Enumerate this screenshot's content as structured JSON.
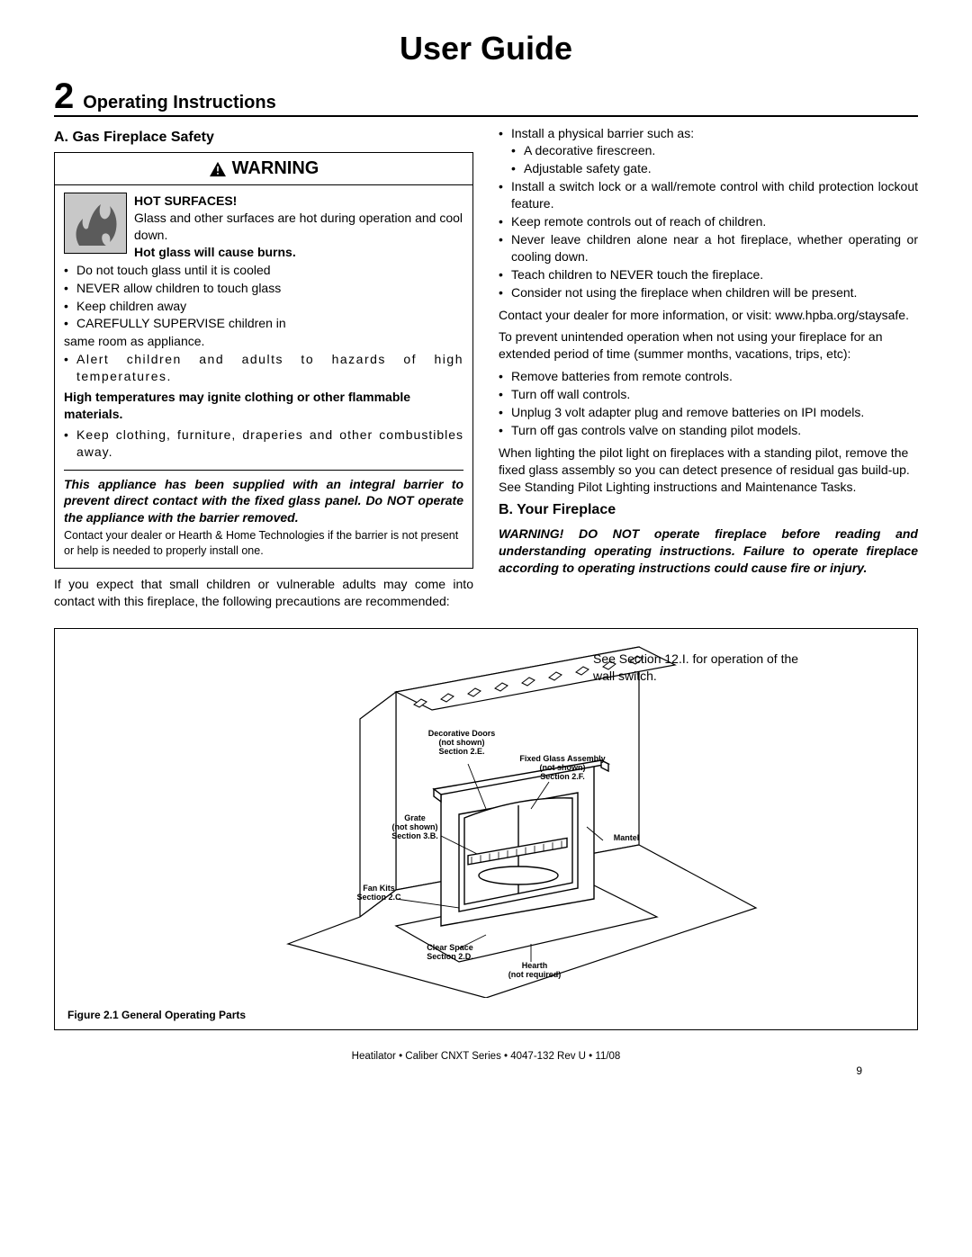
{
  "title": "User Guide",
  "section": {
    "number": "2",
    "title": "Operating Instructions"
  },
  "left": {
    "subhead": "A. Gas Fireplace Safety",
    "warning_label": "WARNING",
    "hot_surfaces": "HOT SURFACES!",
    "hot_intro": "Glass and other surfaces are hot during operation and cool down.",
    "hot_burns": "Hot glass will cause burns.",
    "hot_bullets": [
      "Do not touch glass until it is cooled",
      "NEVER allow children to touch glass",
      "Keep children away",
      "CAREFULLY SUPERVISE children in"
    ],
    "hot_same_room": "same room as appliance.",
    "alert": "Alert children and adults to hazards of high temperatures.",
    "high_temp": "High temperatures may ignite clothing or other flammable materials",
    "clothing": "Keep clothing, furniture, draperies and other combustibles away.",
    "barrier_title": "This appliance has been supplied with an integral barrier to prevent direct contact with the fixed glass panel. Do NOT operate the appliance with the barrier removed.",
    "barrier_note": "Contact your dealer or Hearth & Home Technologies if the barrier is not present or help is needed to properly install one.",
    "precautions_intro": "If you expect that small children or vulnerable adults may come into contact with this fireplace, the following precautions are recommended:"
  },
  "right": {
    "bullets1": [
      "Install a physical barrier such as:",
      "Install a switch lock or a wall/remote control with child protection lockout feature.",
      "Keep remote controls out of reach of children.",
      "Never leave children alone near a hot fireplace, whether operating or cooling down.",
      "Teach children to NEVER touch the fireplace.",
      "Consider not using the fireplace when children will be present."
    ],
    "nested1": [
      "A decorative firescreen.",
      "Adjustable safety gate."
    ],
    "contact": "Contact your dealer for more information, or visit: www.hpba.org/staysafe.",
    "prevent_intro": "To prevent unintended operation when not using your fireplace for an extended period of time (summer months, vacations, trips, etc):",
    "bullets2": [
      "Remove batteries from remote controls.",
      "Turn off wall controls.",
      "Unplug 3 volt adapter plug and remove batteries on IPI models.",
      "Turn off gas controls valve on standing pilot models."
    ],
    "pilot": "When lighting the pilot light on fireplaces with a standing pilot, remove the fixed glass assembly so you can detect presence of residual gas build-up. See Standing Pilot Lighting instructions and Maintenance Tasks.",
    "subhead_b": "B. Your Fireplace",
    "warn_operate": "WARNING! DO NOT operate fireplace before reading and understanding operating instructions. Failure to operate fireplace according to operating instructions could cause fire or injury."
  },
  "figure": {
    "note": "See Section 12.I. for operation of the wall switch.",
    "caption": "Figure 2.1  General Operating Parts",
    "labels": {
      "decorative_doors": "Decorative Doors\n(not shown)\nSection 2.E.",
      "fixed_glass": "Fixed Glass Assembly\n(not shown)\nSection 2.F.",
      "grate": "Grate\n(not shown)\nSection 3.B.",
      "mantel": "Mantel",
      "fan_kits": "Fan Kits\nSection 2.C",
      "clear_space": "Clear Space\nSection 2.D.",
      "hearth": "Hearth\n(not required)"
    }
  },
  "footer": "Heatilator • Caliber CNXT Series • 4047-132 Rev U • 11/08",
  "page": "9",
  "colors": {
    "border": "#000000",
    "icon_bg": "#c8c8c8",
    "figure_fill": "#ffffff"
  }
}
